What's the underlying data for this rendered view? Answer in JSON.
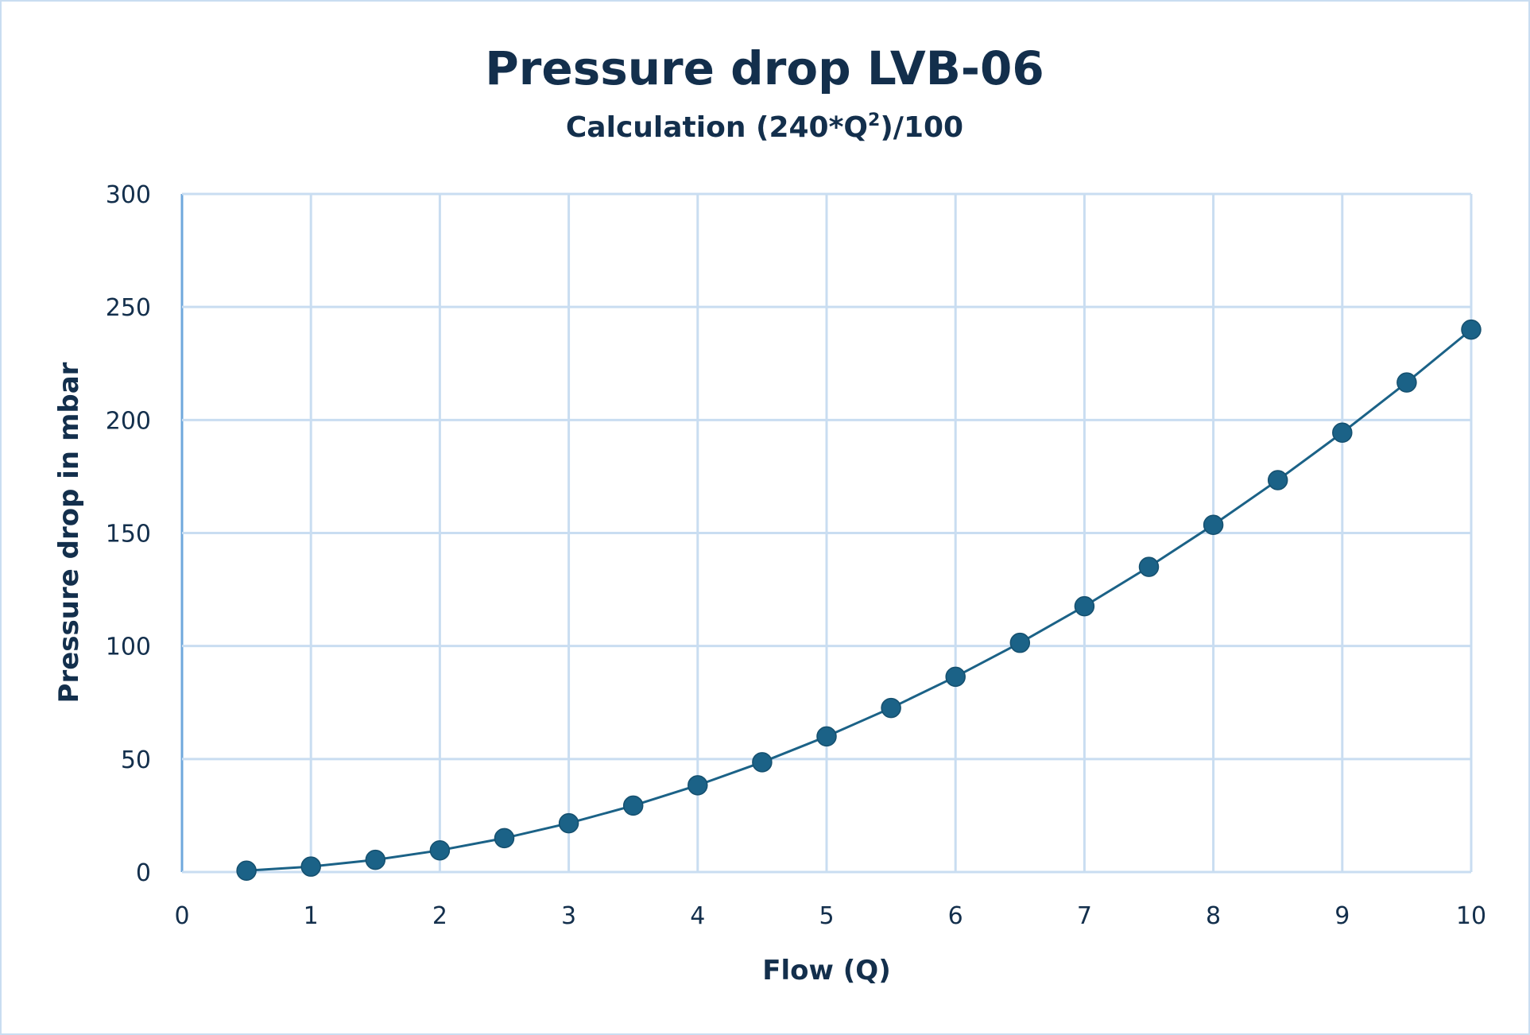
{
  "chart_data": {
    "type": "line",
    "title": "Pressure drop LVB-06",
    "subtitle_prefix": "Calculation (240*Q",
    "subtitle_sup": "2",
    "subtitle_suffix": ")/100",
    "xlabel": "Flow (Q)",
    "ylabel": "Pressure drop in mbar",
    "xlim": [
      0,
      10
    ],
    "ylim": [
      0,
      300
    ],
    "xticks": [
      "0",
      "1",
      "2",
      "3",
      "4",
      "5",
      "6",
      "7",
      "8",
      "9",
      "10"
    ],
    "yticks": [
      "0",
      "50",
      "100",
      "150",
      "200",
      "250",
      "300"
    ],
    "grid": true,
    "legend": "none",
    "series": [
      {
        "name": "Pressure drop",
        "color": "#1b6287",
        "x": [
          0.5,
          1,
          1.5,
          2,
          2.5,
          3,
          3.5,
          4,
          4.5,
          5,
          5.5,
          6,
          6.5,
          7,
          7.5,
          8,
          8.5,
          9,
          9.5,
          10
        ],
        "y": [
          0.6,
          2.4,
          5.4,
          9.6,
          15,
          21.6,
          29.4,
          38.4,
          48.6,
          60,
          72.6,
          86.4,
          101.4,
          117.6,
          135,
          153.6,
          173.4,
          194.4,
          216.6,
          240
        ]
      }
    ]
  }
}
